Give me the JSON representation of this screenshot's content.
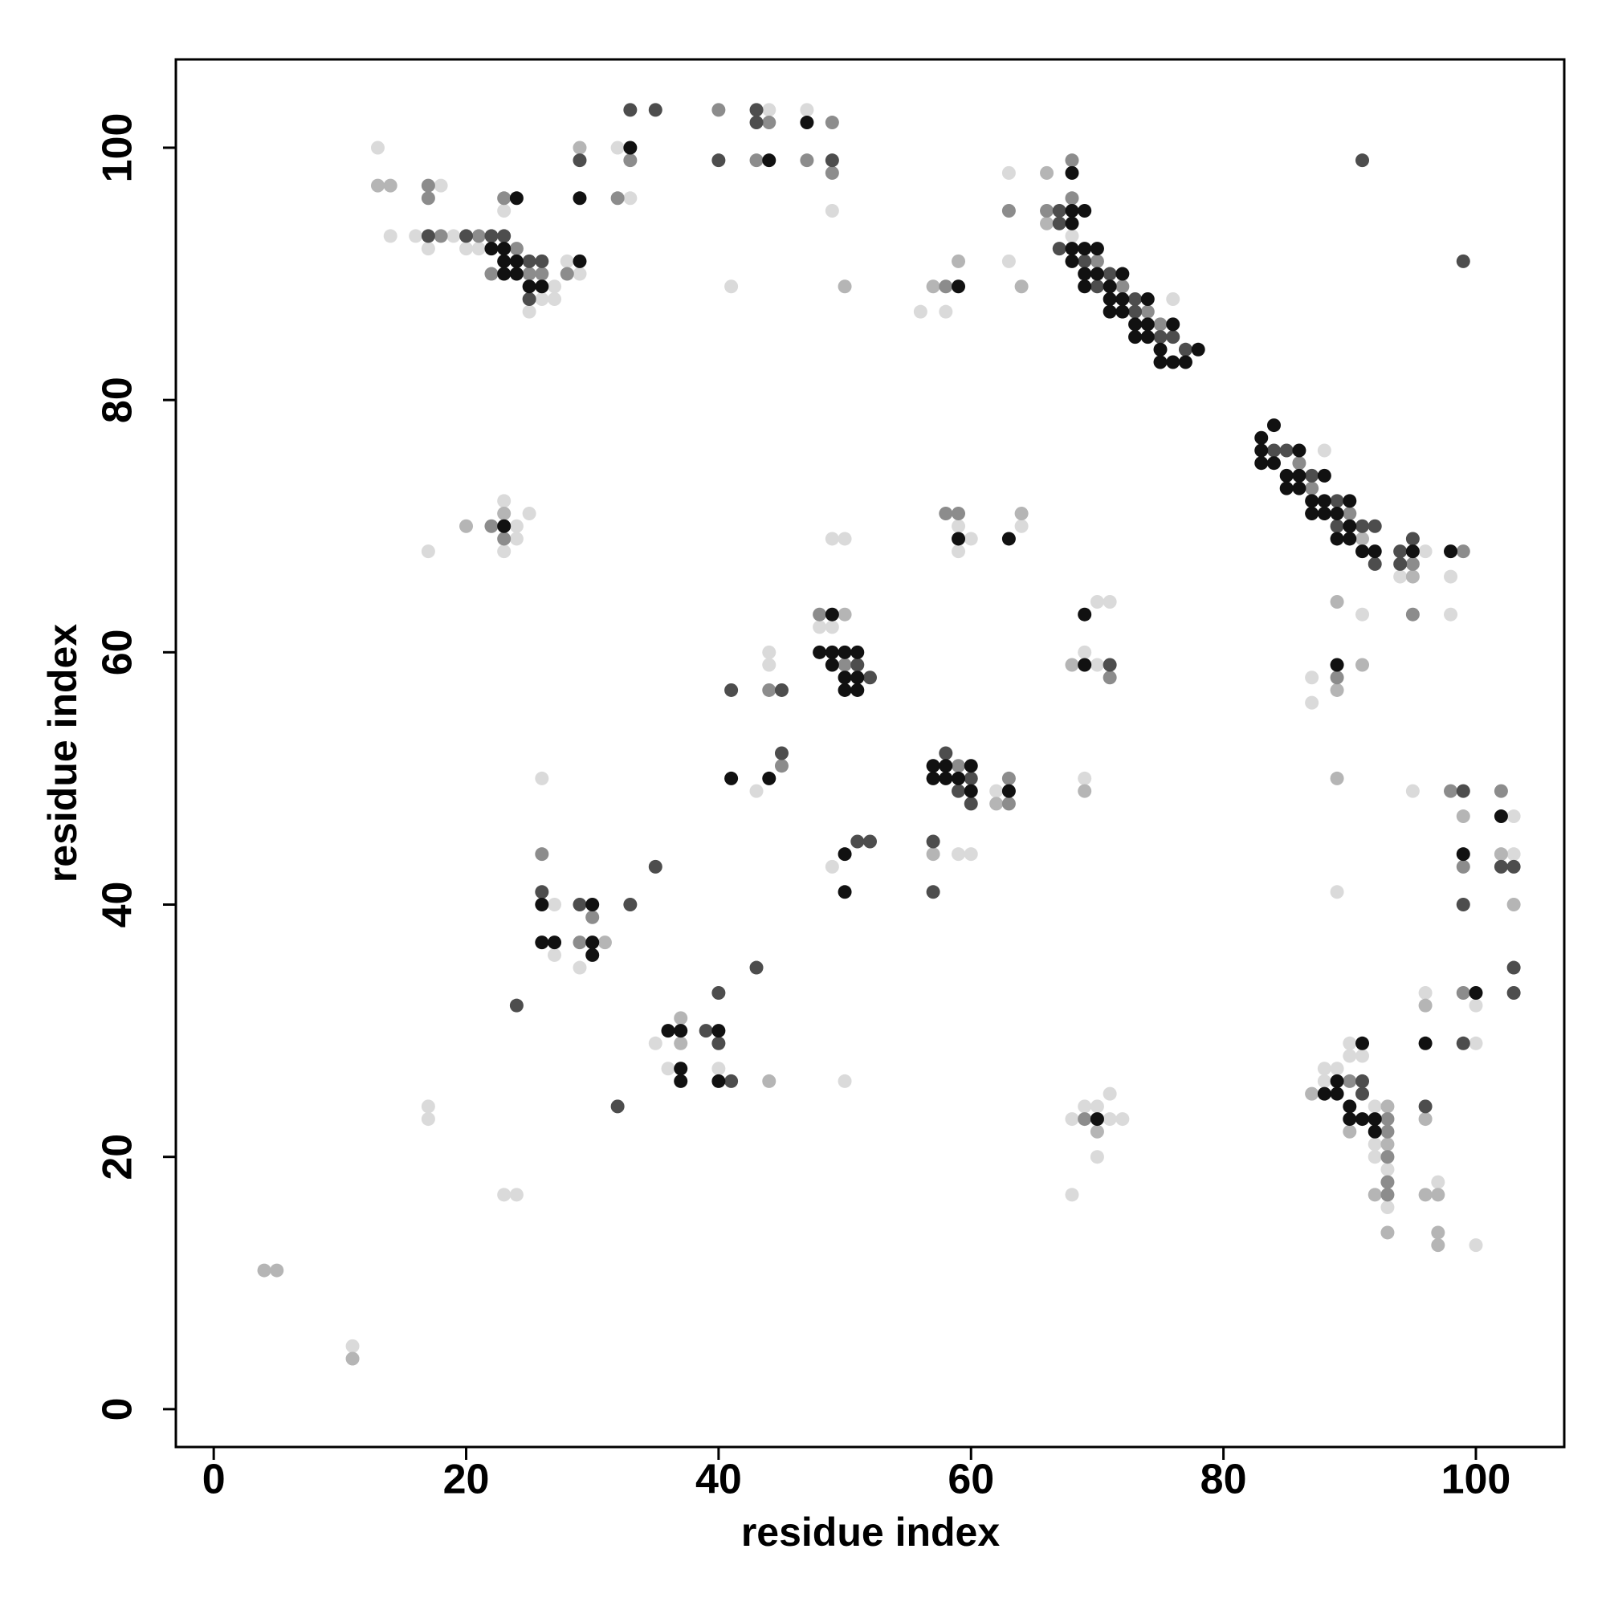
{
  "chart_data": {
    "type": "scatter",
    "x_label": "residue index",
    "y_label": "residue index",
    "xlim": [
      -3,
      107
    ],
    "ylim": [
      -3,
      107
    ],
    "xticks": [
      0,
      20,
      40,
      60,
      80,
      100
    ],
    "yticks": [
      0,
      20,
      40,
      60,
      80,
      100
    ],
    "series": [
      {
        "color": "#111111",
        "x": [
          23,
          22,
          23,
          23,
          23,
          24,
          24,
          24,
          25,
          26,
          29,
          29,
          33,
          44,
          47,
          26,
          26,
          27,
          30,
          30,
          30,
          36,
          37,
          37,
          37,
          40,
          40,
          41,
          44,
          48,
          49,
          49,
          49,
          50,
          50,
          50,
          51,
          51,
          51,
          50,
          50,
          59,
          57,
          57,
          58,
          58,
          59,
          60,
          60,
          63,
          59,
          63,
          68,
          68,
          68,
          68,
          68,
          69,
          69,
          69,
          69,
          70,
          70,
          71,
          71,
          71,
          72,
          72,
          72,
          73,
          73,
          74,
          74,
          74,
          75,
          75,
          76,
          76,
          77,
          78,
          69,
          69,
          70,
          83,
          83,
          83,
          84,
          84,
          85,
          85,
          86,
          86,
          86,
          87,
          87,
          88,
          88,
          88,
          89,
          89,
          90,
          90,
          90,
          91,
          92,
          95,
          98,
          89,
          99,
          102,
          96,
          100,
          88,
          89,
          89,
          90,
          90,
          91,
          91,
          92,
          92
        ],
        "y": [
          70,
          92,
          92,
          91,
          90,
          96,
          91,
          90,
          89,
          89,
          96,
          91,
          100,
          99,
          102,
          40,
          37,
          37,
          40,
          37,
          36,
          30,
          30,
          27,
          26,
          30,
          26,
          50,
          50,
          60,
          63,
          60,
          59,
          60,
          58,
          57,
          60,
          58,
          57,
          44,
          41,
          89,
          51,
          50,
          51,
          50,
          50,
          51,
          49,
          49,
          69,
          69,
          98,
          95,
          94,
          92,
          91,
          95,
          92,
          90,
          89,
          92,
          90,
          89,
          88,
          87,
          90,
          88,
          87,
          86,
          85,
          88,
          86,
          85,
          84,
          83,
          86,
          83,
          83,
          84,
          63,
          59,
          23,
          77,
          76,
          75,
          78,
          75,
          74,
          73,
          76,
          74,
          73,
          72,
          71,
          74,
          72,
          71,
          71,
          69,
          72,
          70,
          69,
          68,
          68,
          68,
          68,
          59,
          44,
          47,
          29,
          33,
          25,
          26,
          25,
          24,
          23,
          29,
          23,
          23,
          22
        ]
      },
      {
        "color": "#4d4d4d",
        "x": [
          17,
          20,
          22,
          23,
          25,
          25,
          26,
          29,
          33,
          35,
          40,
          43,
          43,
          49,
          24,
          32,
          26,
          29,
          33,
          35,
          39,
          40,
          40,
          41,
          43,
          41,
          45,
          45,
          51,
          52,
          51,
          52,
          57,
          57,
          58,
          59,
          60,
          60,
          67,
          67,
          67,
          69,
          70,
          71,
          73,
          73,
          75,
          76,
          77,
          71,
          84,
          85,
          87,
          89,
          89,
          91,
          92,
          92,
          94,
          94,
          95,
          91,
          99,
          99,
          99,
          102,
          103,
          103,
          103,
          99,
          91,
          91,
          96
        ],
        "y": [
          93,
          93,
          93,
          93,
          91,
          88,
          91,
          99,
          103,
          103,
          99,
          103,
          102,
          99,
          32,
          24,
          41,
          40,
          40,
          43,
          30,
          33,
          29,
          26,
          35,
          57,
          57,
          52,
          59,
          58,
          45,
          45,
          45,
          41,
          52,
          49,
          50,
          48,
          95,
          94,
          92,
          91,
          89,
          90,
          88,
          87,
          85,
          85,
          84,
          59,
          76,
          76,
          74,
          72,
          70,
          70,
          70,
          67,
          68,
          67,
          69,
          99,
          91,
          49,
          40,
          43,
          43,
          35,
          33,
          29,
          26,
          25,
          24
        ]
      },
      {
        "color": "#8c8c8c",
        "x": [
          17,
          17,
          18,
          21,
          22,
          23,
          24,
          25,
          26,
          28,
          32,
          33,
          40,
          43,
          44,
          47,
          49,
          49,
          22,
          23,
          26,
          29,
          30,
          44,
          45,
          48,
          50,
          58,
          59,
          63,
          63,
          58,
          59,
          63,
          66,
          68,
          68,
          70,
          72,
          74,
          75,
          71,
          69,
          86,
          87,
          90,
          95,
          99,
          95,
          89,
          98,
          102,
          99,
          99,
          90,
          93,
          93,
          93,
          93,
          93
        ],
        "y": [
          97,
          96,
          93,
          93,
          90,
          96,
          92,
          90,
          90,
          90,
          96,
          99,
          103,
          99,
          102,
          99,
          102,
          98,
          70,
          69,
          44,
          37,
          39,
          57,
          51,
          63,
          59,
          89,
          51,
          50,
          48,
          71,
          71,
          95,
          95,
          99,
          96,
          91,
          89,
          87,
          86,
          58,
          23,
          75,
          73,
          71,
          67,
          68,
          63,
          58,
          49,
          49,
          43,
          33,
          26,
          23,
          22,
          20,
          18,
          17
        ]
      },
      {
        "color": "#b5b5b5",
        "x": [
          4,
          5,
          11,
          13,
          14,
          29,
          50,
          20,
          23,
          37,
          37,
          31,
          44,
          50,
          57,
          59,
          57,
          62,
          64,
          64,
          66,
          66,
          68,
          69,
          70,
          91,
          95,
          89,
          89,
          91,
          89,
          99,
          102,
          103,
          96,
          87,
          90,
          92,
          93,
          93,
          93,
          96,
          96,
          97,
          97,
          97
        ],
        "y": [
          11,
          11,
          4,
          97,
          97,
          100,
          89,
          70,
          71,
          31,
          29,
          37,
          26,
          63,
          89,
          91,
          44,
          48,
          71,
          89,
          98,
          94,
          59,
          49,
          22,
          69,
          66,
          64,
          57,
          59,
          50,
          47,
          44,
          40,
          32,
          25,
          22,
          17,
          24,
          21,
          14,
          23,
          17,
          17,
          14,
          13
        ]
      },
      {
        "color": "#dadada",
        "x": [
          11,
          13,
          14,
          16,
          17,
          18,
          19,
          20,
          21,
          23,
          25,
          26,
          27,
          27,
          28,
          29,
          32,
          33,
          41,
          44,
          47,
          49,
          17,
          23,
          23,
          24,
          24,
          25,
          17,
          17,
          23,
          24,
          26,
          27,
          27,
          29,
          35,
          36,
          40,
          50,
          43,
          44,
          44,
          48,
          49,
          49,
          50,
          49,
          56,
          58,
          59,
          60,
          62,
          59,
          59,
          60,
          64,
          63,
          63,
          68,
          76,
          69,
          70,
          70,
          71,
          68,
          68,
          69,
          70,
          70,
          71,
          71,
          72,
          69,
          88,
          94,
          96,
          98,
          91,
          98,
          87,
          87,
          89,
          95,
          103,
          103,
          96,
          100,
          100,
          88,
          88,
          89,
          90,
          90,
          91,
          92,
          92,
          92,
          93,
          93,
          97,
          100
        ],
        "y": [
          5,
          100,
          93,
          93,
          92,
          97,
          93,
          92,
          92,
          95,
          87,
          88,
          89,
          88,
          91,
          90,
          100,
          96,
          89,
          103,
          103,
          95,
          68,
          72,
          68,
          70,
          69,
          71,
          24,
          23,
          17,
          17,
          50,
          40,
          36,
          35,
          29,
          27,
          27,
          26,
          49,
          60,
          59,
          62,
          62,
          69,
          69,
          43,
          87,
          87,
          44,
          44,
          49,
          70,
          68,
          69,
          70,
          98,
          91,
          93,
          88,
          60,
          64,
          59,
          64,
          23,
          17,
          24,
          24,
          20,
          25,
          23,
          23,
          50,
          76,
          66,
          68,
          66,
          63,
          63,
          58,
          56,
          41,
          49,
          47,
          44,
          33,
          32,
          29,
          27,
          26,
          27,
          29,
          28,
          28,
          24,
          21,
          20,
          19,
          16,
          18,
          13
        ]
      }
    ]
  }
}
